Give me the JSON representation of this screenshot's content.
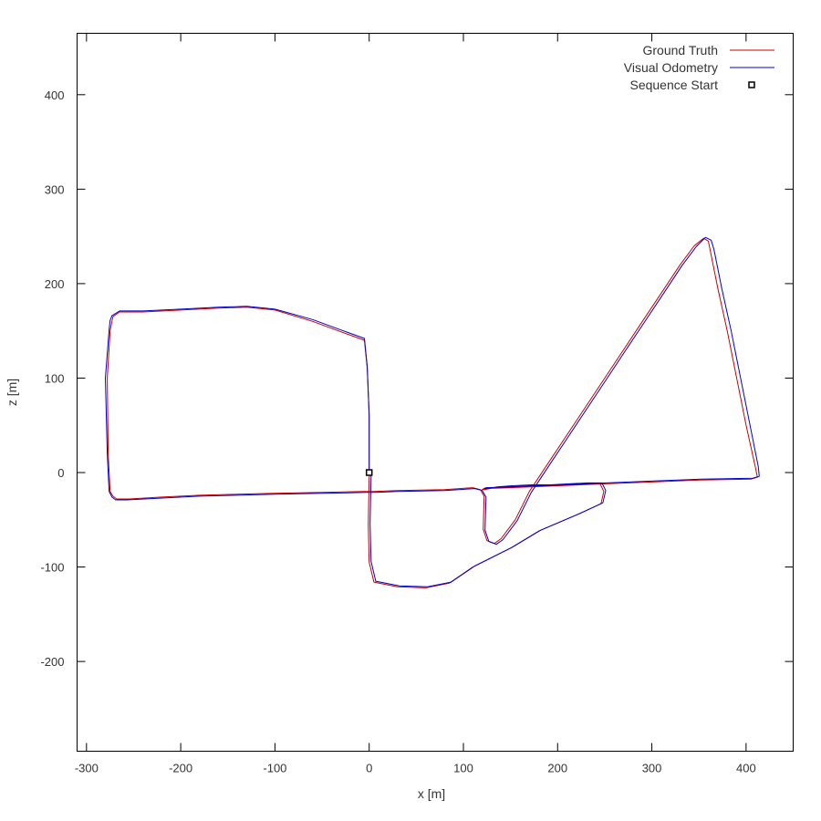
{
  "chart_data": {
    "type": "line",
    "xlabel": "x [m]",
    "ylabel": "z [m]",
    "xlim": [
      -310,
      450
    ],
    "ylim": [
      -295,
      465
    ],
    "xticks": [
      -300,
      -200,
      -100,
      0,
      100,
      200,
      300,
      400
    ],
    "yticks": [
      -200,
      -100,
      0,
      100,
      200,
      300,
      400
    ],
    "grid": false,
    "legend_position": "top-right",
    "series": [
      {
        "name": "Ground Truth",
        "color": "#cc0000",
        "x": [
          0,
          0,
          0,
          -2,
          -5,
          -30,
          -60,
          -100,
          -130,
          -160,
          -200,
          -240,
          -265,
          -272,
          -273,
          -275,
          -278,
          -277,
          -275,
          -272,
          -268,
          -255,
          -220,
          -180,
          -140,
          -100,
          -50,
          -5,
          5,
          30,
          80,
          110,
          118,
          122,
          121,
          125,
          133,
          140,
          155,
          170,
          190,
          210,
          230,
          250,
          270,
          290,
          310,
          330,
          345,
          355,
          360,
          362,
          370,
          380,
          400,
          410,
          412,
          405,
          350,
          300,
          250,
          200,
          150,
          122,
          120,
          122,
          128,
          135,
          150,
          170,
          190,
          210,
          230,
          245,
          249,
          246,
          220,
          180,
          150,
          110,
          85,
          60,
          30,
          5,
          0,
          -1,
          0,
          1,
          0
        ],
        "y": [
          0,
          10,
          60,
          110,
          140,
          149,
          160,
          172,
          175,
          174,
          172,
          170,
          170,
          165,
          160,
          150,
          100,
          20,
          -20,
          -25,
          -28,
          -28,
          -26,
          -24,
          -23,
          -22,
          -21,
          -20,
          -20,
          -19,
          -18,
          -16,
          -18,
          -25,
          -60,
          -72,
          -75,
          -70,
          -50,
          -20,
          10,
          40,
          70,
          100,
          130,
          160,
          190,
          220,
          240,
          248,
          245,
          235,
          195,
          150,
          50,
          5,
          -5,
          -7,
          -8,
          -10,
          -12,
          -14,
          -16,
          -17,
          -18,
          -18,
          -17,
          -16,
          -15,
          -14,
          -14,
          -13,
          -12,
          -12,
          -20,
          -33,
          -45,
          -62,
          -80,
          -100,
          -117,
          -122,
          -121,
          -116,
          -95,
          -55,
          -5,
          0,
          0
        ]
      },
      {
        "name": "Visual Odometry",
        "color": "#0000cc",
        "x": [
          0,
          0,
          0,
          -2,
          -5,
          -30,
          -60,
          -100,
          -130,
          -160,
          -200,
          -240,
          -265,
          -273,
          -275,
          -276,
          -280,
          -278,
          -276,
          -273,
          -269,
          -257,
          -220,
          -180,
          -140,
          -100,
          -50,
          -3,
          7,
          30,
          80,
          112,
          120,
          124,
          123,
          127,
          135,
          142,
          157,
          172,
          192,
          212,
          232,
          252,
          272,
          292,
          312,
          332,
          347,
          357,
          363,
          366,
          374,
          384,
          404,
          413,
          414,
          407,
          352,
          302,
          252,
          202,
          152,
          124,
          122,
          124,
          130,
          137,
          152,
          172,
          192,
          212,
          232,
          247,
          251,
          248,
          222,
          182,
          152,
          112,
          87,
          62,
          32,
          7,
          2,
          1,
          2,
          2,
          0
        ],
        "y": [
          0,
          10,
          60,
          112,
          142,
          151,
          162,
          173,
          176,
          175,
          173,
          171,
          171,
          166,
          161,
          151,
          100,
          20,
          -20,
          -26,
          -29,
          -29,
          -27,
          -25,
          -24,
          -23,
          -22,
          -21,
          -21,
          -20,
          -19,
          -17,
          -19,
          -26,
          -61,
          -73,
          -76,
          -71,
          -51,
          -21,
          9,
          39,
          69,
          99,
          129,
          159,
          189,
          219,
          239,
          249,
          246,
          236,
          196,
          151,
          51,
          6,
          -4,
          -6,
          -7,
          -9,
          -11,
          -13,
          -15,
          -16,
          -17,
          -17,
          -16,
          -15,
          -14,
          -13,
          -13,
          -12,
          -11,
          -11,
          -19,
          -32,
          -44,
          -61,
          -79,
          -99,
          -116,
          -121,
          -120,
          -115,
          -94,
          -54,
          -4,
          1,
          0
        ]
      },
      {
        "name": "Sequence Start",
        "marker": "square",
        "color": "#000000",
        "x": [
          0
        ],
        "y": [
          0
        ]
      }
    ]
  }
}
